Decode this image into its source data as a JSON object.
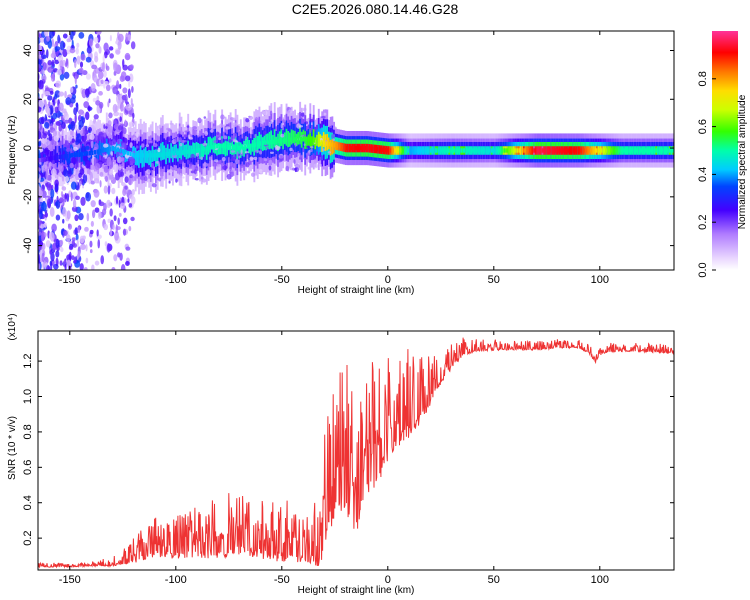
{
  "title": "C2E5.2026.080.14.46.G28",
  "chart_data": [
    {
      "type": "heatmap",
      "xlabel": "Height of straight line (km)",
      "ylabel": "Frequency (Hz)",
      "xlim": [
        -165,
        135
      ],
      "ylim": [
        -50,
        48
      ],
      "xticks": [
        -150,
        -100,
        -50,
        0,
        50,
        100
      ],
      "yticks": [
        -40,
        -20,
        0,
        20,
        40
      ],
      "colorbar": {
        "label": "Normalized spectral amplitude",
        "range": [
          0,
          1
        ],
        "ticks": [
          0.0,
          0.2,
          0.4,
          0.6,
          0.8
        ]
      },
      "ridge": {
        "x": [
          -165,
          -150,
          -140,
          -130,
          -120,
          -110,
          -100,
          -90,
          -80,
          -70,
          -60,
          -50,
          -40,
          -35,
          -30,
          -25,
          -20,
          -10,
          0,
          10,
          30,
          50,
          70,
          90,
          110,
          135
        ],
        "freq": [
          -5,
          -3,
          -2,
          0,
          -3,
          -3,
          -2,
          -1,
          1,
          0,
          2,
          3,
          4,
          3,
          2,
          1,
          0,
          0,
          -1,
          -1,
          -1,
          -1,
          -1,
          -1,
          -1,
          -1
        ],
        "amplitude": [
          0.2,
          0.35,
          0.35,
          0.4,
          0.42,
          0.45,
          0.45,
          0.48,
          0.5,
          0.5,
          0.5,
          0.52,
          0.55,
          0.6,
          0.75,
          0.8,
          0.9,
          0.92,
          0.9,
          0.4,
          0.5,
          0.45,
          0.95,
          0.9,
          0.5,
          0.5
        ]
      }
    },
    {
      "type": "line",
      "xlabel": "Height of straight line (km)",
      "ylabel": "SNR (10 * v/v)",
      "yscale_label": "(x10⁴)",
      "xlim": [
        -165,
        135
      ],
      "ylim": [
        0.02,
        1.37
      ],
      "xticks": [
        -150,
        -100,
        -50,
        0,
        50,
        100
      ],
      "yticks": [
        0.2,
        0.4,
        0.6,
        0.8,
        1.0,
        1.2
      ],
      "color": "#ee3333",
      "trend": {
        "x": [
          -165,
          -150,
          -130,
          -120,
          -110,
          -100,
          -80,
          -70,
          -50,
          -40,
          -32,
          -28,
          -25,
          -20,
          -15,
          -10,
          -5,
          0,
          5,
          10,
          15,
          20,
          25,
          30,
          35,
          40,
          50,
          60,
          70,
          80,
          90,
          95,
          98,
          100,
          105,
          110,
          120,
          135
        ],
        "y": [
          0.04,
          0.04,
          0.05,
          0.08,
          0.13,
          0.12,
          0.14,
          0.16,
          0.12,
          0.12,
          0.1,
          0.35,
          0.42,
          0.5,
          0.3,
          0.55,
          0.6,
          0.72,
          0.78,
          0.85,
          0.9,
          1.0,
          1.1,
          1.18,
          1.24,
          1.26,
          1.27,
          1.27,
          1.27,
          1.28,
          1.28,
          1.25,
          1.2,
          1.24,
          1.26,
          1.26,
          1.26,
          1.25
        ]
      },
      "noise": {
        "x": [
          -165,
          -140,
          -125,
          -115,
          -100,
          -75,
          -60,
          -40,
          -33,
          -30,
          -25,
          -20,
          -15,
          -10,
          0,
          10,
          20,
          30,
          40,
          60,
          90,
          100,
          135
        ],
        "amplitude": [
          0.01,
          0.01,
          0.03,
          0.08,
          0.1,
          0.14,
          0.14,
          0.14,
          0.16,
          0.3,
          0.3,
          0.35,
          0.3,
          0.3,
          0.25,
          0.2,
          0.12,
          0.06,
          0.03,
          0.02,
          0.02,
          0.02,
          0.02
        ]
      },
      "annotations": [
        {
          "x": 99.5,
          "y": 1.34
        },
        {
          "x": -22,
          "y": 1.28
        },
        {
          "x": -27,
          "y": 0.96
        }
      ]
    }
  ]
}
